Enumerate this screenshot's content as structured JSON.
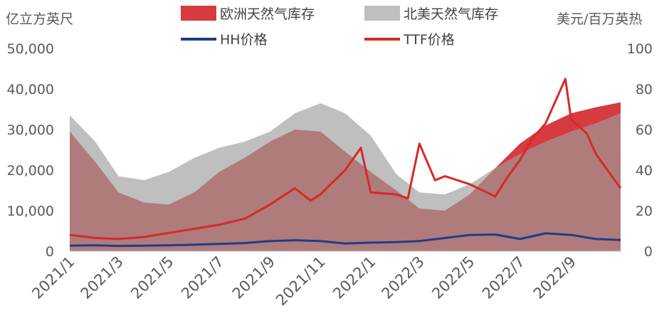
{
  "chart_data": {
    "type": "area",
    "left_axis_unit": "亿立方英尺",
    "right_axis_unit": "美元/百万英热",
    "ylim_left": [
      0,
      50000
    ],
    "ylim_right": [
      0,
      100
    ],
    "yticks_left": [
      "0",
      "10,000",
      "20,000",
      "30,000",
      "40,000",
      "50,000"
    ],
    "yticks_right": [
      "0",
      "20",
      "40",
      "60",
      "80",
      "100"
    ],
    "x_ticks": [
      "2021/1",
      "2021/3",
      "2021/5",
      "2021/7",
      "2021/9",
      "2021/11",
      "2022/1",
      "2022/3",
      "2022/5",
      "2022/7",
      "2022/9"
    ],
    "x_range": [
      "2021-01-01",
      "2022-10-31"
    ],
    "legend": [
      "欧洲天然气库存",
      "北美天然气库存",
      "HH价格",
      "TTF价格"
    ],
    "colors": {
      "europe_storage": "#d63b3f",
      "na_storage": "#bfbfbf",
      "overlap": "#b07b7b",
      "hh": "#1f3d8a",
      "ttf": "#d42a2a"
    },
    "series": [
      {
        "name": "欧洲天然气库存",
        "axis": "left",
        "style": "area",
        "x": [
          "2021-01-01",
          "2021-02-01",
          "2021-03-01",
          "2021-04-01",
          "2021-05-01",
          "2021-06-01",
          "2021-07-01",
          "2021-08-01",
          "2021-09-01",
          "2021-10-01",
          "2021-11-01",
          "2021-12-01",
          "2022-01-01",
          "2022-02-01",
          "2022-03-01",
          "2022-04-01",
          "2022-05-01",
          "2022-06-01",
          "2022-07-01",
          "2022-08-01",
          "2022-09-01",
          "2022-10-01",
          "2022-10-31"
        ],
        "values": [
          29500,
          22000,
          14500,
          12000,
          11500,
          14500,
          19500,
          23000,
          27000,
          30000,
          29500,
          24500,
          19500,
          15000,
          10500,
          10000,
          14000,
          20500,
          26500,
          31000,
          34000,
          35500,
          36700
        ]
      },
      {
        "name": "北美天然气库存",
        "axis": "left",
        "style": "area",
        "x": [
          "2021-01-01",
          "2021-02-01",
          "2021-03-01",
          "2021-04-01",
          "2021-05-01",
          "2021-06-01",
          "2021-07-01",
          "2021-08-01",
          "2021-09-01",
          "2021-10-01",
          "2021-11-01",
          "2021-12-01",
          "2022-01-01",
          "2022-02-01",
          "2022-03-01",
          "2022-04-01",
          "2022-05-01",
          "2022-06-01",
          "2022-07-01",
          "2022-08-01",
          "2022-09-01",
          "2022-10-01",
          "2022-10-31"
        ],
        "values": [
          33500,
          27000,
          18500,
          17500,
          19500,
          23000,
          25500,
          27000,
          29500,
          34000,
          36500,
          34000,
          28500,
          19000,
          14500,
          14000,
          16500,
          20500,
          24000,
          27000,
          29500,
          31500,
          34000
        ]
      },
      {
        "name": "HH价格",
        "axis": "right",
        "style": "line",
        "x": [
          "2021-01-01",
          "2021-02-01",
          "2021-03-01",
          "2021-04-01",
          "2021-05-01",
          "2021-06-01",
          "2021-07-01",
          "2021-08-01",
          "2021-09-01",
          "2021-10-01",
          "2021-11-01",
          "2021-12-01",
          "2022-01-01",
          "2022-02-01",
          "2022-03-01",
          "2022-04-01",
          "2022-05-01",
          "2022-06-01",
          "2022-07-01",
          "2022-08-01",
          "2022-09-01",
          "2022-10-01",
          "2022-10-31"
        ],
        "values": [
          2.7,
          2.9,
          2.6,
          2.7,
          2.9,
          3.2,
          3.6,
          4.0,
          5.0,
          5.4,
          5.0,
          3.8,
          4.2,
          4.5,
          5.0,
          6.5,
          8.0,
          8.2,
          6.0,
          8.8,
          8.0,
          6.0,
          5.5
        ]
      },
      {
        "name": "TTF价格",
        "axis": "right",
        "style": "line",
        "x": [
          "2021-01-01",
          "2021-02-01",
          "2021-03-01",
          "2021-04-01",
          "2021-05-01",
          "2021-06-01",
          "2021-07-01",
          "2021-08-01",
          "2021-09-01",
          "2021-10-01",
          "2021-10-20",
          "2021-11-01",
          "2021-12-01",
          "2021-12-20",
          "2022-01-01",
          "2022-02-01",
          "2022-02-15",
          "2022-03-01",
          "2022-03-20",
          "2022-04-01",
          "2022-05-01",
          "2022-06-01",
          "2022-06-15",
          "2022-07-01",
          "2022-07-15",
          "2022-08-01",
          "2022-08-25",
          "2022-09-01",
          "2022-09-20",
          "2022-10-01",
          "2022-10-31"
        ],
        "values": [
          8,
          6.5,
          6,
          7,
          9,
          11,
          13,
          16,
          23,
          31,
          25,
          28,
          40,
          51,
          29,
          28,
          26,
          53,
          35,
          37,
          33,
          27,
          36,
          45,
          55,
          63,
          85,
          65,
          58,
          48,
          31
        ]
      }
    ]
  }
}
